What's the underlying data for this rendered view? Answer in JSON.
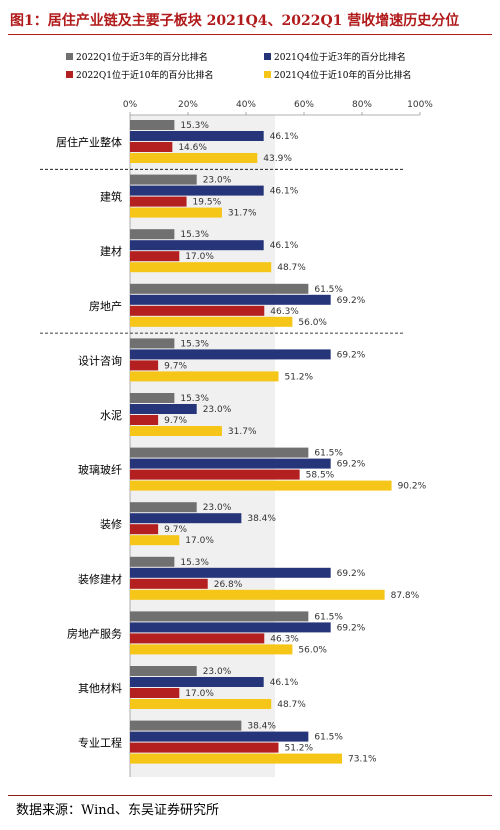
{
  "title": "图1：居住产业链及主要子板块 2021Q4、2022Q1 营收增速历史分位",
  "source": "数据来源：Wind、东吴证券研究所",
  "chart_data": {
    "type": "bar",
    "orientation": "horizontal",
    "categories": [
      "居住产业整体",
      "建筑",
      "建材",
      "房地产",
      "设计咨询",
      "水泥",
      "玻璃玻纤",
      "装修",
      "装修建材",
      "房地产服务",
      "其他材料",
      "专业工程"
    ],
    "series": [
      {
        "name": "2022Q1位于近3年的百分比排名",
        "color": "#707070",
        "values": [
          15.3,
          23.0,
          15.3,
          61.5,
          15.3,
          15.3,
          61.5,
          23.0,
          15.3,
          61.5,
          23.0,
          38.4
        ]
      },
      {
        "name": "2021Q4位于近3年的百分比排名",
        "color": "#26357a",
        "values": [
          46.1,
          46.1,
          46.1,
          69.2,
          69.2,
          23.0,
          69.2,
          38.4,
          69.2,
          69.2,
          46.1,
          61.5
        ]
      },
      {
        "name": "2022Q1位于近10年的百分比排名",
        "color": "#b41f1f",
        "values": [
          14.6,
          19.5,
          17.0,
          46.3,
          9.7,
          9.7,
          58.5,
          9.7,
          26.8,
          46.3,
          17.0,
          51.2
        ]
      },
      {
        "name": "2021Q4位于近10年的百分比排名",
        "color": "#f5c518",
        "values": [
          43.9,
          31.7,
          48.7,
          56.0,
          51.2,
          31.7,
          90.2,
          17.0,
          87.8,
          56.0,
          48.7,
          73.1
        ]
      }
    ],
    "value_labels": [
      [
        "15.3%",
        "23.0%",
        "15.3%",
        "61.5%",
        "15.3%",
        "15.3%",
        "61.5%",
        "23.0%",
        "15.3%",
        "61.5%",
        "23.0%",
        "38.4%"
      ],
      [
        "46.1%",
        "46.1%",
        "46.1%",
        "69.2%",
        "69.2%",
        "23.0%",
        "69.2%",
        "38.4%",
        "69.2%",
        "69.2%",
        "46.1%",
        "61.5%"
      ],
      [
        "14.6%",
        "19.5%",
        "17.0%",
        "46.3%",
        "9.7%",
        "9.7%",
        "58.5%",
        "9.7%",
        "26.8%",
        "46.3%",
        "17.0%",
        "51.2%"
      ],
      [
        "43.9%",
        "31.7%",
        "48.7%",
        "56.0%",
        "51.2%",
        "31.7%",
        "90.2%",
        "17.0%",
        "87.8%",
        "56.0%",
        "48.7%",
        "73.1%"
      ]
    ],
    "xlim": [
      0,
      100
    ],
    "xticks": [
      "0%",
      "20%",
      "40%",
      "60%",
      "80%",
      "100%"
    ],
    "shaded_band": [
      0,
      50
    ],
    "group_separators_after": [
      "居住产业整体",
      "房地产"
    ],
    "legend_position": "top"
  }
}
